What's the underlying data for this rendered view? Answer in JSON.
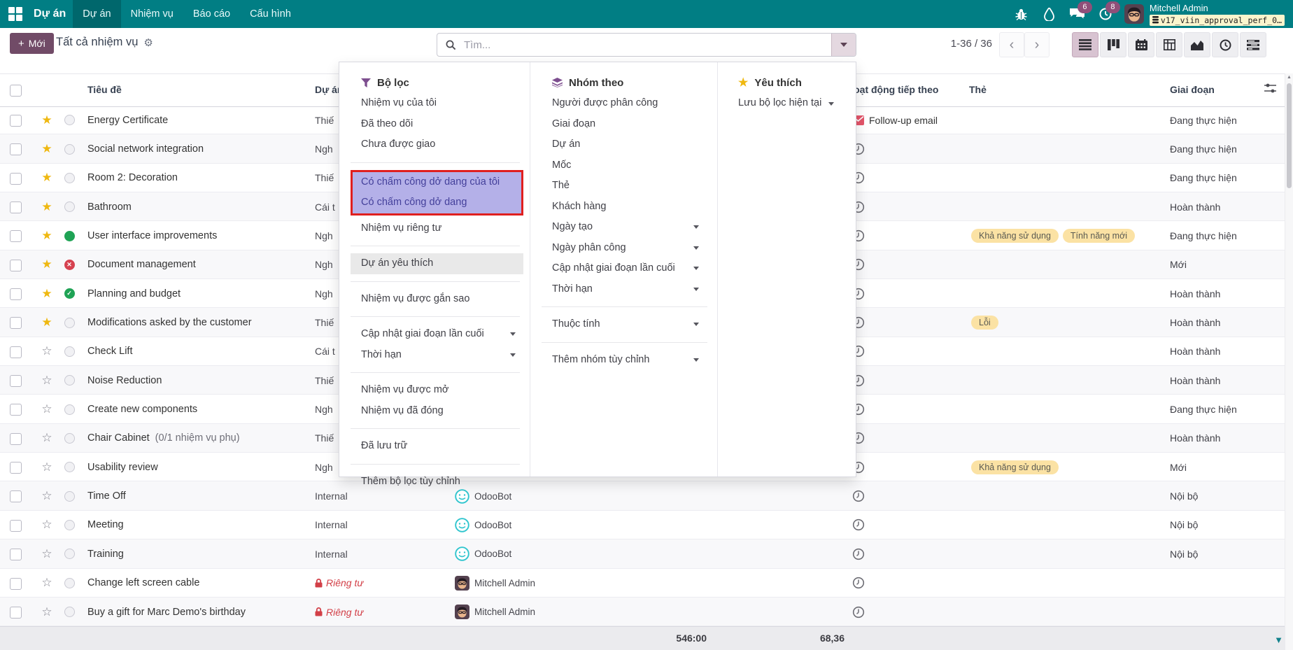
{
  "colors": {
    "navbar_teal": "#017E84",
    "accent_purple": "#714B67",
    "badge_purple": "#8F4F79",
    "selected_filter_bg": "#B4B0E8",
    "selected_filter_text": "#44409B",
    "marker_red": "#E01F1F",
    "tag_yellow": "#FBE2A4",
    "status_green": "#1FA355",
    "status_red": "#D64250",
    "private_red": "#D23F47"
  },
  "navbar": {
    "brand": "Dự án",
    "menus": [
      {
        "label": "Dự án",
        "active": true
      },
      {
        "label": "Nhiệm vụ",
        "active": false
      },
      {
        "label": "Báo cáo",
        "active": false
      },
      {
        "label": "Cấu hình",
        "active": false
      }
    ],
    "right_icons": [
      {
        "name": "bug-icon",
        "badge": ""
      },
      {
        "name": "droplet-icon",
        "badge": ""
      },
      {
        "name": "messages-icon",
        "badge": "6"
      },
      {
        "name": "activities-icon",
        "badge": "8"
      }
    ],
    "user": {
      "name": "Mitchell Admin",
      "database": "v17_viin_approval_perf_0…"
    }
  },
  "control_panel": {
    "new_button": "Mới",
    "title": "Tất cả nhiệm vụ",
    "search_placeholder": "Tìm...",
    "pager": "1-36 / 36",
    "view_switcher": [
      {
        "name": "list-view",
        "active": true
      },
      {
        "name": "kanban-view",
        "active": false
      },
      {
        "name": "calendar-view",
        "active": false
      },
      {
        "name": "pivot-view",
        "active": false
      },
      {
        "name": "graph-view",
        "active": false
      },
      {
        "name": "activity-view",
        "active": false
      },
      {
        "name": "gantt-view",
        "active": false
      }
    ]
  },
  "search_dropdown": {
    "filters": {
      "title": "Bộ lọc",
      "items": [
        {
          "label": "Nhiệm vụ của tôi"
        },
        {
          "label": "Đã theo dõi"
        },
        {
          "label": "Chưa được giao"
        },
        {
          "sep": true
        },
        {
          "marked_group": [
            "Có chấm công dở dang của tôi",
            "Có chấm công dở dang"
          ]
        },
        {
          "label": "Nhiệm vụ riêng tư"
        },
        {
          "sep": true
        },
        {
          "label": "Dự án yêu thích",
          "hover": true
        },
        {
          "sep": true
        },
        {
          "label": "Nhiệm vụ được gắn sao"
        },
        {
          "sep": true
        },
        {
          "label": "Cập nhật giai đoạn lần cuối",
          "caret": true
        },
        {
          "label": "Thời hạn",
          "caret": true
        },
        {
          "sep": true
        },
        {
          "label": "Nhiệm vụ được mở"
        },
        {
          "label": "Nhiệm vụ đã đóng"
        },
        {
          "sep": true
        },
        {
          "label": "Đã lưu trữ"
        },
        {
          "sep": true
        },
        {
          "label": "Thêm bộ lọc tùy chỉnh"
        }
      ]
    },
    "groupby": {
      "title": "Nhóm theo",
      "items": [
        {
          "label": "Người được phân công"
        },
        {
          "label": "Giai đoạn"
        },
        {
          "label": "Dự án"
        },
        {
          "label": "Mốc"
        },
        {
          "label": "Thẻ"
        },
        {
          "label": "Khách hàng"
        },
        {
          "label": "Ngày tạo",
          "caret": true
        },
        {
          "label": "Ngày phân công",
          "caret": true
        },
        {
          "label": "Cập nhật giai đoạn lần cuối",
          "caret": true
        },
        {
          "label": "Thời hạn",
          "caret": true
        },
        {
          "sep": true
        },
        {
          "label": "Thuộc tính",
          "caret": true
        },
        {
          "sep": true
        },
        {
          "label": "Thêm nhóm tùy chỉnh",
          "caret": true
        }
      ]
    },
    "favorites": {
      "title": "Yêu thích",
      "items": [
        {
          "label": "Lưu bộ lọc hiện tại",
          "caret": true
        }
      ]
    }
  },
  "table": {
    "headers": {
      "title": "Tiêu đề",
      "project": "Dự án",
      "activity": "Hoạt động tiếp theo",
      "tags": "Thẻ",
      "stage": "Giai đoạn"
    },
    "rows": [
      {
        "title": "Energy Certificate",
        "project": "Thiế",
        "starred": true,
        "status": "none",
        "activity": "mail",
        "activity_label": "Follow-up email",
        "tags": [],
        "stage": "Đang thực hiện"
      },
      {
        "title": "Social network integration",
        "project": "Ngh",
        "starred": true,
        "status": "none",
        "activity": "clock",
        "tags": [],
        "stage": "Đang thực hiện"
      },
      {
        "title": "Room 2: Decoration",
        "project": "Thiế",
        "starred": true,
        "status": "none",
        "activity": "clock",
        "tags": [],
        "stage": "Đang thực hiện"
      },
      {
        "title": "Bathroom",
        "project": "Cái t",
        "starred": true,
        "status": "none",
        "activity": "clock",
        "tags": [],
        "stage": "Hoàn thành"
      },
      {
        "title": "User interface improvements",
        "project": "Ngh",
        "starred": true,
        "status": "green",
        "activity": "clock",
        "tags": [
          "Khả năng sử dụng",
          "Tính năng mới"
        ],
        "stage": "Đang thực hiện"
      },
      {
        "title": "Document management",
        "project": "Ngh",
        "starred": true,
        "status": "red",
        "activity": "clock",
        "tags": [],
        "stage": "Mới"
      },
      {
        "title": "Planning and budget",
        "project": "Ngh",
        "starred": true,
        "status": "check",
        "activity": "clock",
        "tags": [],
        "stage": "Hoàn thành"
      },
      {
        "title": "Modifications asked by the customer",
        "project": "Thiế",
        "starred": true,
        "status": "none",
        "activity": "clock",
        "tags": [
          "Lỗi"
        ],
        "stage": "Hoàn thành"
      },
      {
        "title": "Check Lift",
        "project": "Cái t",
        "starred": false,
        "status": "none",
        "activity": "clock",
        "tags": [],
        "stage": "Hoàn thành"
      },
      {
        "title": "Noise Reduction",
        "project": "Thiế",
        "starred": false,
        "status": "none",
        "activity": "clock",
        "tags": [],
        "stage": "Hoàn thành"
      },
      {
        "title": "Create new components",
        "project": "Ngh",
        "starred": false,
        "status": "none",
        "activity": "clock",
        "tags": [],
        "stage": "Đang thực hiện"
      },
      {
        "title": "Chair Cabinet",
        "subtitle": "(0/1 nhiệm vụ phụ)",
        "project": "Thiế",
        "starred": false,
        "status": "none",
        "activity": "clock",
        "tags": [],
        "stage": "Hoàn thành"
      },
      {
        "title": "Usability review",
        "project": "Ngh",
        "starred": false,
        "status": "none",
        "activity": "clock",
        "tags": [
          "Khả năng sử dụng"
        ],
        "stage": "Mới"
      },
      {
        "title": "Time Off",
        "project": "Internal",
        "starred": false,
        "status": "none",
        "assignee": {
          "name": "OdooBot",
          "avatar": "odoobot"
        },
        "activity": "clock",
        "tags": [],
        "stage": "Nội bộ"
      },
      {
        "title": "Meeting",
        "project": "Internal",
        "starred": false,
        "status": "none",
        "assignee": {
          "name": "OdooBot",
          "avatar": "odoobot"
        },
        "activity": "clock",
        "tags": [],
        "stage": "Nội bộ"
      },
      {
        "title": "Training",
        "project": "Internal",
        "starred": false,
        "status": "none",
        "assignee": {
          "name": "OdooBot",
          "avatar": "odoobot"
        },
        "activity": "clock",
        "tags": [],
        "stage": "Nội bộ"
      },
      {
        "title": "Change left screen cable",
        "project": "Riêng tư",
        "private": true,
        "starred": false,
        "status": "none",
        "assignee": {
          "name": "Mitchell Admin",
          "avatar": "mitchell"
        },
        "activity": "clock",
        "tags": [],
        "stage": ""
      },
      {
        "title": "Buy a gift for Marc Demo's birthday",
        "project": "Riêng tư",
        "private": true,
        "starred": false,
        "status": "none",
        "assignee": {
          "name": "Mitchell Admin",
          "avatar": "mitchell"
        },
        "activity": "clock",
        "tags": [],
        "stage": ""
      }
    ]
  },
  "footer": {
    "hours_total": "546:00",
    "progress_total": "68,36"
  }
}
